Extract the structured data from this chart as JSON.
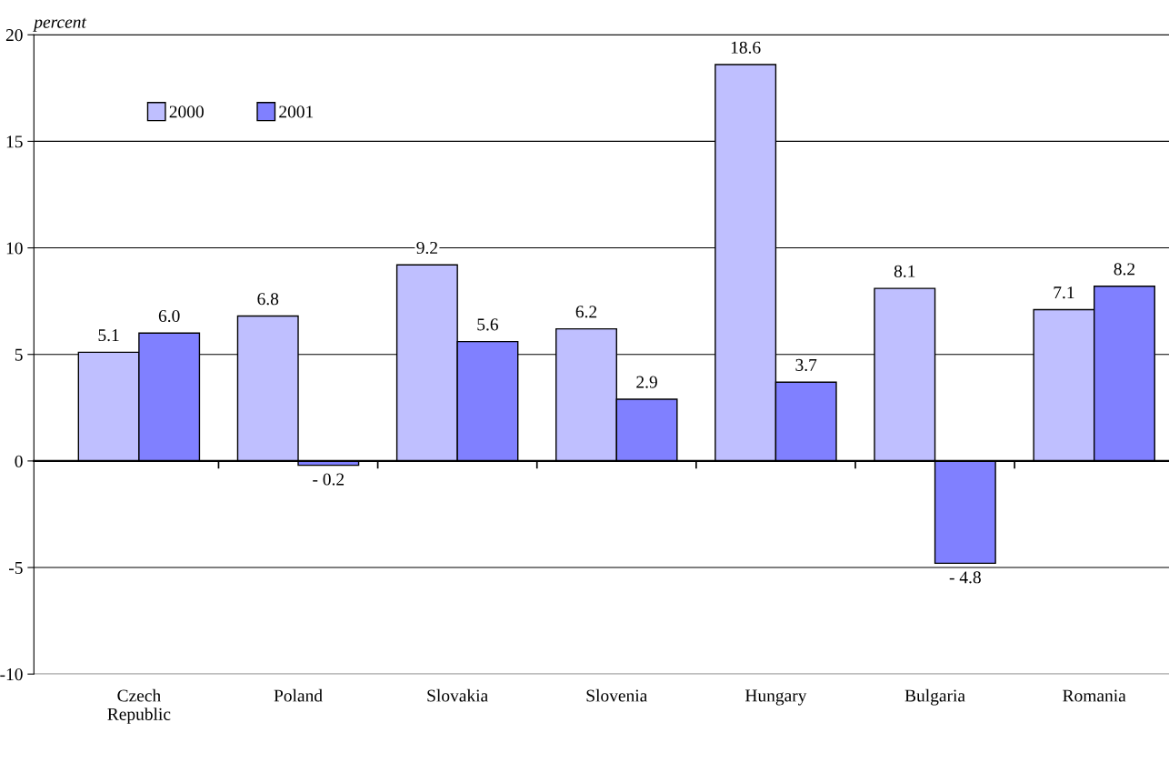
{
  "chart_data": {
    "type": "bar",
    "ylabel": "percent",
    "categories": [
      "Czech\nRepublic",
      "Poland",
      "Slovakia",
      "Slovenia",
      "Hungary",
      "Bulgaria",
      "Romania"
    ],
    "series": [
      {
        "name": "2000",
        "color": "#bfbfff",
        "values": [
          5.1,
          6.8,
          9.2,
          6.2,
          18.6,
          8.1,
          7.1
        ],
        "value_labels": [
          "5.1",
          "6.8",
          "9.2",
          "6.2",
          "18.6",
          "8.1",
          "7.1"
        ]
      },
      {
        "name": "2001",
        "color": "#8080ff",
        "values": [
          6.0,
          -0.2,
          5.6,
          2.9,
          3.7,
          -4.8,
          8.2
        ],
        "value_labels": [
          "6.0",
          "- 0.2",
          "5.6",
          "2.9",
          "3.7",
          "- 4.8",
          "8.2"
        ]
      }
    ],
    "ylim": [
      -10,
      20
    ],
    "yticks": [
      -10,
      -5,
      0,
      5,
      10,
      15,
      20
    ],
    "grid": "y",
    "legend": "top left"
  }
}
